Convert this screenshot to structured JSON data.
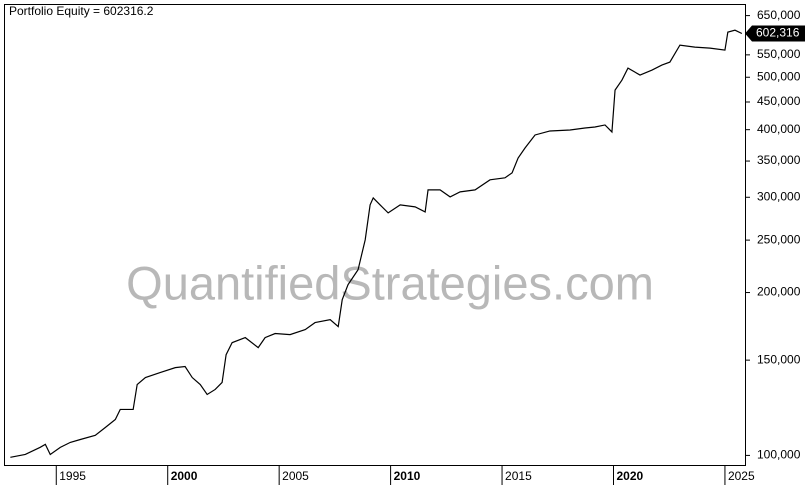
{
  "chart_data": {
    "type": "line",
    "title": "Portfolio Equity = 602316.2",
    "watermark": "QuantifiedStrategies.com",
    "log_scale": true,
    "grid": false,
    "xlim": [
      1992.7,
      2025.9
    ],
    "ylim": [
      96000,
      680000
    ],
    "xticks": [
      1995,
      2000,
      2005,
      2010,
      2015,
      2020,
      2025
    ],
    "yticks": [
      {
        "value": 100000,
        "label": "100,000"
      },
      {
        "value": 150000,
        "label": "150,000"
      },
      {
        "value": 200000,
        "label": "200,000"
      },
      {
        "value": 250000,
        "label": "250,000"
      },
      {
        "value": 300000,
        "label": "300,000"
      },
      {
        "value": 350000,
        "label": "350,000"
      },
      {
        "value": 400000,
        "label": "400,000"
      },
      {
        "value": 450000,
        "label": "450,000"
      },
      {
        "value": 500000,
        "label": "500,000"
      },
      {
        "value": 550000,
        "label": "550,000"
      },
      {
        "value": 650000,
        "label": "650,000"
      }
    ],
    "last_value": {
      "value": 602316.2,
      "label": "602,316"
    },
    "series": [
      {
        "name": "Portfolio Equity",
        "color": "#000000",
        "x": [
          1992.94,
          1993.61,
          1994.28,
          1994.51,
          1994.73,
          1995.18,
          1995.63,
          1996.08,
          1996.75,
          1997.2,
          1997.65,
          1997.87,
          1998.45,
          1998.63,
          1999.0,
          1999.66,
          2000.34,
          2000.78,
          2001.1,
          2001.46,
          2001.77,
          2002.13,
          2002.44,
          2002.62,
          2002.89,
          2003.48,
          2004.06,
          2004.37,
          2004.82,
          2005.49,
          2006.17,
          2006.61,
          2007.29,
          2007.65,
          2007.83,
          2008.09,
          2008.54,
          2008.86,
          2009.08,
          2009.22,
          2009.53,
          2009.89,
          2010.43,
          2011.1,
          2011.55,
          2011.68,
          2012.22,
          2012.67,
          2013.12,
          2013.79,
          2014.46,
          2015.13,
          2015.45,
          2015.72,
          2016.03,
          2016.48,
          2017.15,
          2018.05,
          2018.72,
          2019.17,
          2019.62,
          2019.93,
          2020.07,
          2020.38,
          2020.65,
          2021.19,
          2021.73,
          2022.17,
          2022.53,
          2022.98,
          2023.65,
          2024.33,
          2025.0,
          2025.13,
          2025.45,
          2025.76
        ],
        "values": [
          99200,
          100400,
          103500,
          104800,
          100400,
          103500,
          105700,
          107000,
          108900,
          112600,
          116500,
          121600,
          121600,
          135200,
          139300,
          142300,
          145300,
          146000,
          139300,
          135200,
          129600,
          132400,
          136400,
          153500,
          161600,
          165100,
          158200,
          165100,
          168000,
          167200,
          170800,
          176000,
          178200,
          173000,
          194000,
          206800,
          220400,
          250300,
          290400,
          299200,
          290400,
          280700,
          290400,
          288000,
          281900,
          309600,
          309600,
          300500,
          307000,
          309600,
          323100,
          325900,
          332900,
          354600,
          370000,
          391100,
          397800,
          399500,
          402900,
          404600,
          408100,
          396100,
          473300,
          494000,
          519900,
          504700,
          515500,
          526600,
          533300,
          573300,
          568400,
          566000,
          561200,
          605800,
          610900,
          602316.2
        ]
      }
    ]
  }
}
